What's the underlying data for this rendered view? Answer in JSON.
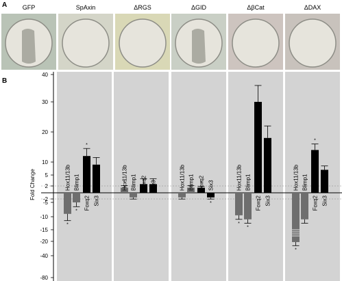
{
  "panel_a": {
    "label": "A",
    "columns": [
      "GFP",
      "SpAxin",
      "ΔRGS",
      "ΔGID",
      "ΔβCat",
      "ΔDAX"
    ]
  },
  "panel_b": {
    "label": "B",
    "colors": {
      "band": "#d3d3d3",
      "dark_bar": "#000000",
      "grey_bar": "#6e6e6e",
      "white_line": "#ffffff"
    }
  },
  "chart_data": {
    "type": "bar",
    "title": "",
    "ylabel": "Fold Change",
    "xlabel": "",
    "yticks": [
      "40",
      "30",
      "20",
      "10",
      "5",
      "2",
      "-2",
      "-5",
      "-10",
      "-15",
      "-20",
      "-40",
      "-80"
    ],
    "reference_lines": [
      2,
      -2
    ],
    "categories": [
      "SpAxin",
      "ΔRGS",
      "ΔGID",
      "ΔβCat",
      "ΔDAX"
    ],
    "series": [
      {
        "name": "Hox11/13b",
        "values": [
          -9,
          1.5,
          -1.5,
          -9.5,
          -21
        ]
      },
      {
        "name": "Blimp1",
        "values": [
          -5,
          -1.5,
          1.5,
          -11,
          -11
        ]
      },
      {
        "name": "Foxq2",
        "values": [
          12,
          2.5,
          1.5,
          30,
          14
        ]
      },
      {
        "name": "Six3",
        "values": [
          9,
          2.5,
          -1.5,
          18,
          7
        ]
      }
    ],
    "gene_labels": [
      [
        "Hox11/13b",
        "Blimp1",
        "Foxq2",
        "Six3"
      ],
      [
        "Hcx11/13b",
        "Blimp1",
        "Foxq2",
        "Six3"
      ],
      [
        "Hox11/13b",
        "Blimp1",
        "Foxq2",
        "Six3"
      ],
      [
        "Hox11/13b",
        "Blimp1",
        "Foxq2",
        "Six3"
      ],
      [
        "Hox11/13b",
        "Blimp1",
        "Foxq2",
        "Six3"
      ]
    ],
    "significance_marker": "*"
  }
}
